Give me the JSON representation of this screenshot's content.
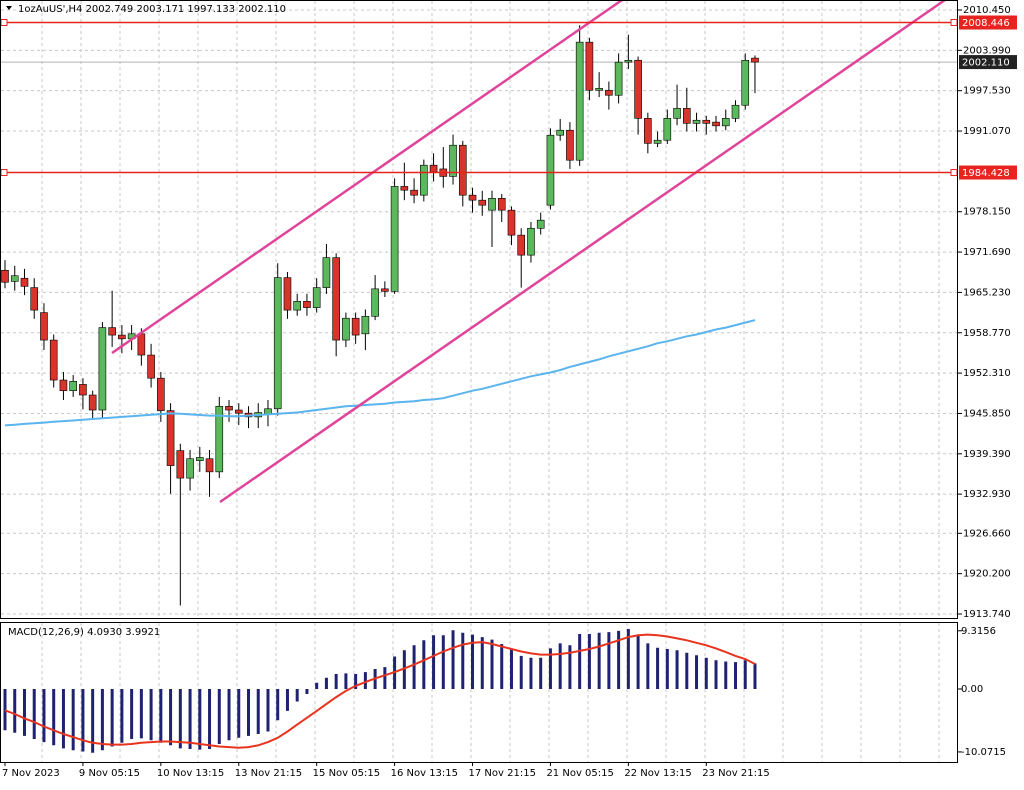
{
  "chart_data": {
    "type": "candlestick",
    "header_text": "1ozAuUS',H4  2002.749 2003.171 1997.133 2002.110",
    "categories": [
      "7 Nov 2023",
      null,
      null,
      null,
      null,
      null,
      null,
      null,
      "9 Nov 05:15",
      null,
      null,
      null,
      null,
      null,
      null,
      null,
      "10 Nov 13:15",
      null,
      null,
      null,
      null,
      null,
      null,
      null,
      "13 Nov 21:15",
      null,
      null,
      null,
      null,
      null,
      null,
      null,
      "15 Nov 05:15",
      null,
      null,
      null,
      null,
      null,
      null,
      null,
      "16 Nov 13:15",
      null,
      null,
      null,
      null,
      null,
      null,
      null,
      "17 Nov 21:15",
      null,
      null,
      null,
      null,
      null,
      null,
      null,
      "21 Nov 05:15",
      null,
      null,
      null,
      null,
      null,
      null,
      null,
      "22 Nov 13:15",
      null,
      null,
      null,
      null,
      null,
      null,
      null,
      "23 Nov 21:15",
      null,
      null,
      null,
      null,
      null
    ],
    "up_color": "#5cb85c",
    "down_color": "#d9342b",
    "candles": {
      "open": [
        1968.78,
        1967.0,
        1967.5,
        1966.0,
        1962.0,
        1957.6,
        1951.2,
        1949.5,
        1950.5,
        1948.8,
        1946.4,
        1959.6,
        1958.4,
        1957.8,
        1958.6,
        1955.2,
        1951.5,
        1946.3,
        1939.9,
        1935.5,
        1938.3,
        1938.6,
        1936.5,
        1947.0,
        1946.4,
        1945.9,
        1945.3,
        1945.8,
        1946.6,
        1967.6,
        1962.4,
        1963.8,
        1962.8,
        1966.0,
        1970.8,
        1957.6,
        1961.1,
        1958.6,
        1961.4,
        1965.8,
        1965.4,
        1982.2,
        1981.6,
        1980.8,
        1985.6,
        1985.0,
        1983.8,
        1988.8,
        1980.8,
        1980.0,
        1978.4,
        1980.3,
        1978.4,
        1974.4,
        1971.2,
        1975.5,
        1979.2,
        1990.4,
        1991.2,
        1986.4,
        2005.3,
        1997.6,
        1997.6,
        1996.8,
        2002.1,
        2002.4,
        1993.1,
        1989.1,
        1989.6,
        1993.1,
        1994.7,
        1992.3,
        1992.8,
        1992.5,
        1991.9,
        1993.1,
        1995.2,
        2002.749
      ],
      "high": [
        1970.4,
        1969.5,
        1969.0,
        1967.5,
        1963.5,
        1958.5,
        1952.5,
        1952.0,
        1951.5,
        1949.5,
        1960.5,
        1965.5,
        1960.0,
        1960.0,
        1959.5,
        1957.0,
        1952.5,
        1947.5,
        1941.0,
        1940.0,
        1940.5,
        1940.0,
        1948.5,
        1948.0,
        1947.5,
        1947.0,
        1947.5,
        1948.0,
        1969.9,
        1968.5,
        1965.0,
        1965.0,
        1967.5,
        1973.0,
        1971.5,
        1962.0,
        1962.0,
        1962.5,
        1968.0,
        1967.0,
        1983.5,
        1986.0,
        1983.5,
        1986.5,
        1987.5,
        1988.5,
        1990.5,
        1989.5,
        1982.0,
        1981.5,
        1981.5,
        1981.0,
        1979.0,
        1975.5,
        1976.5,
        1978.0,
        1991.5,
        1993.0,
        1992.5,
        2008.0,
        2006.0,
        2000.5,
        1999.0,
        2003.5,
        2006.5,
        2003.0,
        1994.0,
        1991.0,
        1994.5,
        1998.5,
        1998.0,
        1994.0,
        1993.5,
        1993.5,
        1994.5,
        1996.0,
        2003.5,
        2003.171
      ],
      "low": [
        1965.9,
        1965.5,
        1964.8,
        1961.0,
        1956.0,
        1950.0,
        1948.0,
        1948.5,
        1946.5,
        1944.8,
        1945.0,
        1956.5,
        1955.5,
        1956.0,
        1953.5,
        1950.0,
        1944.5,
        1933.0,
        1915.1,
        1933.5,
        1936.5,
        1932.5,
        1935.5,
        1944.5,
        1944.0,
        1943.5,
        1943.5,
        1943.8,
        1945.5,
        1961.0,
        1961.5,
        1961.5,
        1962.0,
        1965.0,
        1955.0,
        1956.5,
        1957.0,
        1956.0,
        1960.8,
        1964.5,
        1965.0,
        1980.0,
        1979.5,
        1979.8,
        1983.0,
        1982.0,
        1982.5,
        1979.0,
        1978.0,
        1977.5,
        1972.5,
        1976.5,
        1972.8,
        1966.0,
        1970.0,
        1974.5,
        1978.5,
        1989.5,
        1985.0,
        1985.5,
        1996.0,
        1996.5,
        1994.5,
        1995.5,
        2001.0,
        1990.5,
        1987.5,
        1988.5,
        1989.0,
        1992.0,
        1991.0,
        1991.0,
        1990.5,
        1991.0,
        1991.2,
        1992.5,
        1994.5,
        1997.133
      ],
      "close": [
        1966.86,
        1967.9,
        1966.2,
        1962.4,
        1957.6,
        1951.2,
        1949.5,
        1951.0,
        1948.8,
        1946.4,
        1959.6,
        1958.4,
        1957.8,
        1958.6,
        1955.2,
        1951.5,
        1946.3,
        1937.5,
        1935.5,
        1938.6,
        1938.8,
        1936.5,
        1947.0,
        1946.4,
        1945.9,
        1945.3,
        1946.0,
        1946.6,
        1967.6,
        1962.4,
        1963.8,
        1962.8,
        1966.0,
        1970.8,
        1957.6,
        1961.1,
        1958.4,
        1961.4,
        1965.8,
        1965.4,
        1982.2,
        1981.6,
        1980.8,
        1985.6,
        1984.5,
        1983.8,
        1988.8,
        1980.8,
        1980.0,
        1979.2,
        1980.3,
        1978.4,
        1974.4,
        1971.2,
        1975.5,
        1976.8,
        1990.4,
        1991.2,
        1986.4,
        2005.3,
        1997.6,
        1997.9,
        1996.8,
        2002.1,
        2002.4,
        1993.1,
        1989.1,
        1989.6,
        1993.1,
        1994.7,
        1992.3,
        1992.8,
        1992.3,
        1991.9,
        1993.1,
        1995.2,
        2002.4,
        2002.11
      ]
    },
    "ma": {
      "color": "#5ab4ee",
      "values": [
        1943.94,
        1944.05,
        1944.17,
        1944.28,
        1944.39,
        1944.51,
        1944.62,
        1944.73,
        1944.84,
        1944.96,
        1945.07,
        1945.18,
        1945.3,
        1945.41,
        1945.52,
        1945.63,
        1945.75,
        1945.86,
        1945.8,
        1945.7,
        1945.6,
        1945.5,
        1945.5,
        1945.4,
        1945.4,
        1945.5,
        1945.6,
        1945.7,
        1945.8,
        1945.9,
        1946.0,
        1946.2,
        1946.4,
        1946.6,
        1946.8,
        1947.0,
        1947.1,
        1947.2,
        1947.3,
        1947.4,
        1947.6,
        1947.7,
        1947.8,
        1948.0,
        1948.1,
        1948.3,
        1948.7,
        1949.1,
        1949.5,
        1949.8,
        1950.2,
        1950.6,
        1951.0,
        1951.4,
        1951.8,
        1952.1,
        1952.4,
        1952.8,
        1953.3,
        1953.7,
        1954.1,
        1954.5,
        1955.0,
        1955.4,
        1955.8,
        1956.2,
        1956.6,
        1957.1,
        1957.4,
        1957.8,
        1958.2,
        1958.5,
        1958.9,
        1959.3,
        1959.6,
        1960.0,
        1960.4,
        1960.8
      ]
    },
    "levels": {
      "color": "#e8231f",
      "values": [
        2008.446,
        1984.428
      ]
    },
    "current_price": {
      "value": 2002.11,
      "label": "2002.110"
    },
    "ylim": [
      1913.1,
      2012.05
    ],
    "yticks": [
      {
        "value": 2010.45,
        "label": "2010.450"
      },
      {
        "value": 2003.99,
        "label": "2003.990"
      },
      {
        "value": 1997.53,
        "label": "1997.530"
      },
      {
        "value": 1991.07,
        "label": "1991.070"
      },
      {
        "value": 1978.15,
        "label": "1978.150"
      },
      {
        "value": 1971.69,
        "label": "1971.690"
      },
      {
        "value": 1965.23,
        "label": "1965.230"
      },
      {
        "value": 1958.77,
        "label": "1958.770"
      },
      {
        "value": 1952.31,
        "label": "1952.310"
      },
      {
        "value": 1945.85,
        "label": "1945.850"
      },
      {
        "value": 1939.39,
        "label": "1939.390"
      },
      {
        "value": 1932.93,
        "label": "1932.930"
      },
      {
        "value": 1926.66,
        "label": "1926.660"
      },
      {
        "value": 1920.2,
        "label": "1920.200"
      },
      {
        "value": 1913.74,
        "label": "1913.740"
      }
    ],
    "grid": true,
    "macd": {
      "title": "MACD(12,26,9) 4.0930 3.9921",
      "ylim": [
        -11.68,
        10.72
      ],
      "yticks": [
        9.3156,
        {
          "value": 0,
          "label": "0.00"
        },
        -10.0715
      ],
      "histogram": {
        "color": "#1f2270",
        "values": [
          -6.6,
          -7.0,
          -7.5,
          -8.0,
          -8.5,
          -9.0,
          -9.5,
          -9.8,
          -10.0,
          -10.2,
          -9.8,
          -9.2,
          -8.6,
          -8.0,
          -7.9,
          -8.2,
          -8.6,
          -9.0,
          -9.5,
          -9.6,
          -9.7,
          -9.6,
          -8.8,
          -8.2,
          -7.8,
          -7.5,
          -7.2,
          -6.8,
          -5.0,
          -3.5,
          -2.0,
          -0.8,
          1.0,
          1.8,
          2.4,
          2.5,
          2.4,
          2.7,
          3.2,
          3.5,
          5.2,
          6.2,
          7.0,
          7.8,
          8.6,
          8.6,
          9.4,
          9.0,
          8.7,
          8.3,
          7.9,
          7.2,
          6.3,
          5.3,
          5.0,
          5.0,
          6.5,
          7.3,
          7.0,
          8.8,
          8.8,
          9.0,
          9.1,
          9.3,
          9.6,
          8.6,
          7.3,
          6.6,
          6.4,
          6.2,
          5.8,
          5.4,
          5.0,
          4.6,
          4.4,
          4.3,
          4.6,
          4.093
        ]
      },
      "signal": {
        "color": "#e8341f",
        "values": [
          -3.4,
          -4.0,
          -4.7,
          -5.3,
          -6.0,
          -6.6,
          -7.2,
          -7.7,
          -8.2,
          -8.6,
          -8.8,
          -8.9,
          -8.9,
          -8.8,
          -8.6,
          -8.5,
          -8.4,
          -8.4,
          -8.5,
          -8.6,
          -8.8,
          -9.0,
          -9.2,
          -9.3,
          -9.4,
          -9.3,
          -9.0,
          -8.5,
          -7.8,
          -6.8,
          -5.7,
          -4.6,
          -3.5,
          -2.4,
          -1.3,
          -0.3,
          0.5,
          1.1,
          1.7,
          2.2,
          2.7,
          3.3,
          3.9,
          4.6,
          5.3,
          6.0,
          6.6,
          7.1,
          7.4,
          7.5,
          7.2,
          6.8,
          6.4,
          6.0,
          5.7,
          5.5,
          5.5,
          5.6,
          5.8,
          6.1,
          6.4,
          6.8,
          7.3,
          7.8,
          8.3,
          8.6,
          8.7,
          8.6,
          8.4,
          8.1,
          7.8,
          7.4,
          7.0,
          6.5,
          5.9,
          5.3,
          4.8,
          3.9921
        ]
      }
    }
  }
}
